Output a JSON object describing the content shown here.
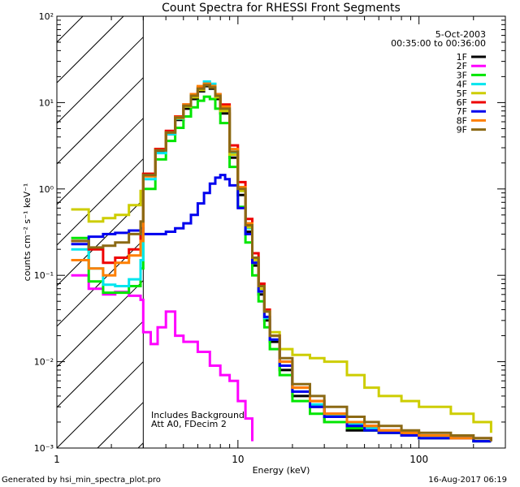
{
  "chart_data": {
    "type": "line",
    "title": "Count Spectra for RHESSI Front Segments",
    "xlabel": "Energy (keV)",
    "ylabel": "counts cm⁻² s⁻¹ keV⁻¹",
    "xscale": "log",
    "yscale": "log",
    "xlim": [
      1,
      300
    ],
    "ylim": [
      0.001,
      100
    ],
    "x_ticks": [
      "1",
      "10",
      "100"
    ],
    "y_ticks": [
      "10⁻³",
      "10⁻²",
      "10⁻¹",
      "10⁰",
      "10¹",
      "10²"
    ],
    "hatched_region_keV": [
      1,
      3
    ],
    "date": "5-Oct-2003",
    "time_range": "00:35:00 to 00:36:00",
    "annotation_lines": [
      "Includes Background",
      "Att A0, FDecim 2"
    ],
    "footer_left": "Generated by hsi_min_spectra_plot.pro",
    "footer_right": "16-Aug-2017 06:19",
    "series": [
      {
        "name": "1F",
        "color": "#000000",
        "x": [
          3,
          3.5,
          4,
          4.5,
          5,
          5.5,
          6,
          6.5,
          7,
          7.5,
          8,
          9,
          10,
          11,
          12,
          13,
          14,
          15,
          17,
          20,
          25,
          30,
          40,
          50,
          60,
          80,
          100,
          150,
          200,
          250
        ],
        "y": [
          1.5,
          2.7,
          4.3,
          6.3,
          8.5,
          11,
          13.5,
          15.5,
          14.5,
          11,
          7.5,
          2.3,
          0.85,
          0.32,
          0.13,
          0.06,
          0.03,
          0.017,
          0.008,
          0.004,
          0.003,
          0.002,
          0.0016,
          0.0016,
          0.0015,
          0.0014,
          0.0013,
          0.0013,
          0.0012,
          0.0012
        ]
      },
      {
        "name": "2F",
        "color": "#ff00ff",
        "x": [
          1.2,
          1.5,
          1.8,
          2.1,
          2.5,
          2.9,
          3,
          3.3,
          3.6,
          4,
          4.5,
          5,
          6,
          7,
          8,
          9,
          10,
          11,
          12
        ],
        "y": [
          0.1,
          0.07,
          0.06,
          0.064,
          0.058,
          0.052,
          0.022,
          0.016,
          0.025,
          0.038,
          0.02,
          0.017,
          0.013,
          0.009,
          0.007,
          0.006,
          0.0035,
          0.0022,
          0.0012
        ]
      },
      {
        "name": "3F",
        "color": "#00e600",
        "x": [
          1.2,
          1.5,
          1.8,
          2.1,
          2.5,
          2.9,
          3,
          3.5,
          4,
          4.5,
          5,
          5.5,
          6,
          6.5,
          7,
          7.5,
          8,
          9,
          10,
          11,
          12,
          13,
          14,
          15,
          17,
          20,
          25,
          30,
          40,
          50,
          60,
          80,
          100,
          150,
          200,
          250
        ],
        "y": [
          0.27,
          0.085,
          0.063,
          0.063,
          0.075,
          0.12,
          1.0,
          2.2,
          3.6,
          5.1,
          6.9,
          8.8,
          10.5,
          11.7,
          11,
          8.5,
          5.8,
          1.8,
          0.62,
          0.24,
          0.1,
          0.05,
          0.025,
          0.014,
          0.007,
          0.0035,
          0.0025,
          0.002,
          0.0017,
          0.0016,
          0.0015,
          0.0014,
          0.0013,
          0.0013,
          0.0012,
          0.0012
        ]
      },
      {
        "name": "4F",
        "color": "#00e5ee",
        "x": [
          1.2,
          1.5,
          1.8,
          2.1,
          2.5,
          2.9,
          3,
          3.5,
          4,
          4.5,
          5,
          5.5,
          6,
          6.5,
          7,
          7.5,
          8,
          9,
          10,
          11,
          12,
          13,
          14,
          15,
          17,
          20,
          25,
          30,
          40,
          50,
          60,
          80,
          100,
          150,
          200,
          250
        ],
        "y": [
          0.2,
          0.12,
          0.078,
          0.075,
          0.09,
          0.15,
          1.3,
          2.6,
          4.3,
          6.5,
          9,
          12,
          15,
          17.5,
          16.5,
          12.5,
          8.5,
          2.6,
          0.95,
          0.35,
          0.14,
          0.065,
          0.032,
          0.018,
          0.009,
          0.0045,
          0.0032,
          0.0024,
          0.0019,
          0.0017,
          0.0016,
          0.0015,
          0.0014,
          0.0013,
          0.0013,
          0.0012
        ]
      },
      {
        "name": "5F",
        "color": "#cdcd00",
        "x": [
          1.2,
          1.5,
          1.8,
          2.1,
          2.5,
          2.9,
          3,
          3.5,
          4,
          4.5,
          5,
          5.5,
          6,
          6.5,
          7,
          7.5,
          8,
          9,
          10,
          11,
          12,
          13,
          14,
          15,
          17,
          20,
          25,
          30,
          40,
          50,
          60,
          80,
          100,
          150,
          200,
          250
        ],
        "y": [
          0.58,
          0.42,
          0.46,
          0.5,
          0.65,
          0.95,
          1.5,
          2.9,
          4.6,
          6.6,
          9,
          11.5,
          14,
          16,
          15,
          11.5,
          8,
          2.5,
          0.95,
          0.36,
          0.15,
          0.07,
          0.04,
          0.022,
          0.014,
          0.012,
          0.011,
          0.01,
          0.007,
          0.005,
          0.004,
          0.0035,
          0.003,
          0.0025,
          0.002,
          0.0015
        ]
      },
      {
        "name": "6F",
        "color": "#ee0000",
        "x": [
          1.2,
          1.5,
          1.8,
          2.1,
          2.5,
          2.9,
          3,
          3.5,
          4,
          4.5,
          5,
          5.5,
          6,
          6.5,
          7,
          7.5,
          8,
          9,
          10,
          11,
          12,
          13,
          14,
          15,
          17,
          20,
          25,
          30,
          40,
          50,
          60,
          80,
          100,
          150,
          200,
          250
        ],
        "y": [
          0.25,
          0.2,
          0.14,
          0.16,
          0.2,
          0.32,
          1.5,
          2.9,
          4.7,
          6.9,
          9.5,
          12.5,
          15,
          16.5,
          15.5,
          12.5,
          9.5,
          3.2,
          1.2,
          0.45,
          0.18,
          0.08,
          0.04,
          0.02,
          0.01,
          0.005,
          0.0035,
          0.0025,
          0.002,
          0.0018,
          0.0016,
          0.0015,
          0.0014,
          0.0013,
          0.0013,
          0.0012
        ]
      },
      {
        "name": "7F",
        "color": "#0000ee",
        "x": [
          1.2,
          1.5,
          1.8,
          2.1,
          2.5,
          2.9,
          3,
          3.5,
          4,
          4.5,
          5,
          5.5,
          6,
          6.5,
          7,
          7.5,
          8,
          8.5,
          9,
          10,
          11,
          12,
          13,
          14,
          15,
          17,
          20,
          25,
          30,
          40,
          50,
          60,
          80,
          100,
          150,
          200,
          250
        ],
        "y": [
          0.23,
          0.28,
          0.3,
          0.31,
          0.33,
          0.35,
          0.3,
          0.3,
          0.32,
          0.35,
          0.4,
          0.5,
          0.68,
          0.9,
          1.15,
          1.35,
          1.45,
          1.3,
          1.1,
          0.6,
          0.3,
          0.14,
          0.065,
          0.033,
          0.018,
          0.009,
          0.0045,
          0.003,
          0.0023,
          0.0018,
          0.0016,
          0.0015,
          0.0014,
          0.0013,
          0.0013,
          0.0012,
          0.0012
        ]
      },
      {
        "name": "8F",
        "color": "#ff7f00",
        "x": [
          1.2,
          1.5,
          1.8,
          2.1,
          2.5,
          2.9,
          3,
          3.5,
          4,
          4.5,
          5,
          5.5,
          6,
          6.5,
          7,
          7.5,
          8,
          9,
          10,
          11,
          12,
          13,
          14,
          15,
          17,
          20,
          25,
          30,
          40,
          50,
          60,
          80,
          100,
          150,
          200,
          250
        ],
        "y": [
          0.15,
          0.12,
          0.1,
          0.14,
          0.17,
          0.25,
          1.4,
          2.8,
          4.5,
          6.8,
          9.5,
          12.5,
          15.5,
          16.5,
          15.5,
          12.5,
          9,
          2.9,
          1.05,
          0.4,
          0.16,
          0.075,
          0.038,
          0.02,
          0.01,
          0.005,
          0.0035,
          0.0025,
          0.002,
          0.0018,
          0.0016,
          0.0015,
          0.0014,
          0.0013,
          0.0013,
          0.0012
        ]
      },
      {
        "name": "9F",
        "color": "#8b6914",
        "x": [
          1.2,
          1.5,
          1.8,
          2.1,
          2.5,
          2.9,
          3,
          3.5,
          4,
          4.5,
          5,
          5.5,
          6,
          6.5,
          7,
          7.5,
          8,
          9,
          10,
          11,
          12,
          13,
          14,
          15,
          17,
          20,
          25,
          30,
          40,
          50,
          60,
          80,
          100,
          150,
          200,
          250
        ],
        "y": [
          0.25,
          0.21,
          0.22,
          0.24,
          0.3,
          0.42,
          1.45,
          2.8,
          4.5,
          6.7,
          9.2,
          12,
          14.5,
          16,
          15,
          12,
          8.5,
          2.7,
          1.0,
          0.38,
          0.16,
          0.075,
          0.038,
          0.02,
          0.011,
          0.0055,
          0.004,
          0.003,
          0.0023,
          0.002,
          0.0018,
          0.0016,
          0.0015,
          0.0014,
          0.0013,
          0.0012
        ]
      }
    ]
  }
}
